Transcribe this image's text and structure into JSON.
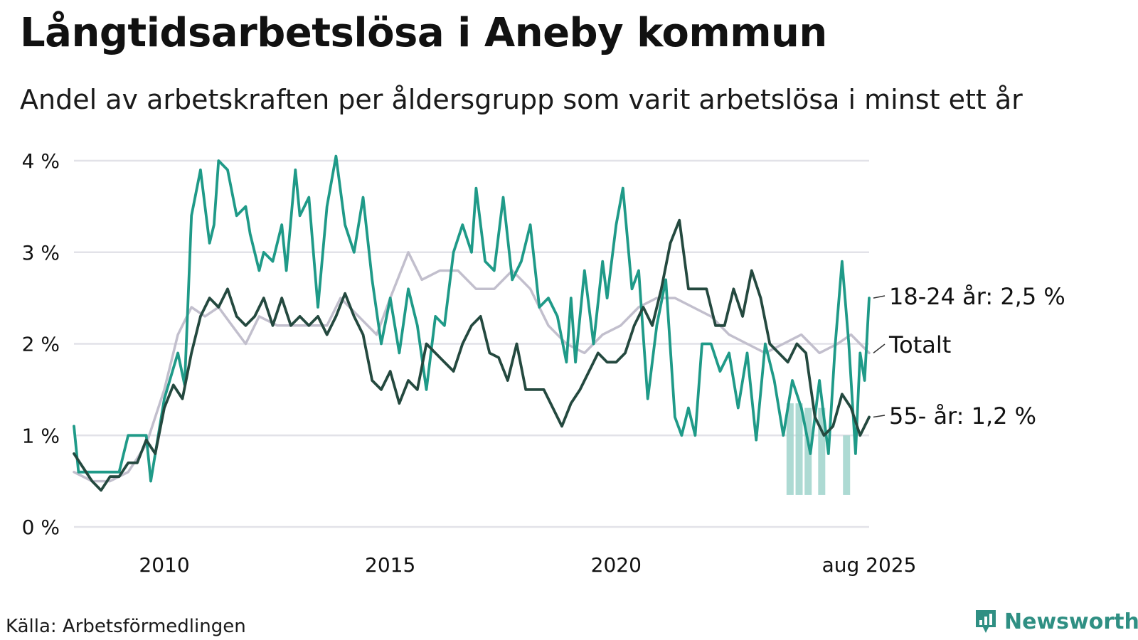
{
  "title": "Långtidsarbetslösa i Aneby kommun",
  "subtitle": "Andel av arbetskraften per åldersgrupp som varit arbetslösa i minst ett år",
  "source": "Källa: Arbetsförmedlingen",
  "brand": "Newsworthy",
  "colors": {
    "young": "#1f9a88",
    "total": "#c2bfcd",
    "old": "#24493f",
    "uncertainty": "#9fd3cb",
    "grid": "#e2e2e8"
  },
  "chart_data": {
    "type": "line",
    "ylim": [
      0,
      4
    ],
    "xlim": [
      2008.0,
      2025.6
    ],
    "yticks": [
      {
        "value": 0,
        "label": "0 %"
      },
      {
        "value": 1,
        "label": "1 %"
      },
      {
        "value": 2,
        "label": "2 %"
      },
      {
        "value": 3,
        "label": "3 %"
      },
      {
        "value": 4,
        "label": "4 %"
      }
    ],
    "xticks": [
      {
        "value": 2010,
        "label": "2010"
      },
      {
        "value": 2015,
        "label": "2015"
      },
      {
        "value": 2020,
        "label": "2020"
      },
      {
        "value": 2025.6,
        "label": "aug 2025"
      }
    ],
    "series": [
      {
        "key": "total",
        "name": "Totalt",
        "label": "Totalt",
        "color": "#c2bfcd",
        "points": [
          [
            2008.0,
            0.6
          ],
          [
            2008.4,
            0.5
          ],
          [
            2008.8,
            0.5
          ],
          [
            2009.2,
            0.6
          ],
          [
            2009.6,
            0.9
          ],
          [
            2010.0,
            1.5
          ],
          [
            2010.3,
            2.1
          ],
          [
            2010.6,
            2.4
          ],
          [
            2010.9,
            2.3
          ],
          [
            2011.2,
            2.4
          ],
          [
            2011.5,
            2.2
          ],
          [
            2011.8,
            2.0
          ],
          [
            2012.1,
            2.3
          ],
          [
            2012.5,
            2.2
          ],
          [
            2012.9,
            2.2
          ],
          [
            2013.3,
            2.2
          ],
          [
            2013.6,
            2.2
          ],
          [
            2013.9,
            2.5
          ],
          [
            2014.3,
            2.3
          ],
          [
            2014.7,
            2.1
          ],
          [
            2015.0,
            2.5
          ],
          [
            2015.4,
            3.0
          ],
          [
            2015.7,
            2.7
          ],
          [
            2016.1,
            2.8
          ],
          [
            2016.5,
            2.8
          ],
          [
            2016.9,
            2.6
          ],
          [
            2017.3,
            2.6
          ],
          [
            2017.7,
            2.8
          ],
          [
            2018.1,
            2.6
          ],
          [
            2018.5,
            2.2
          ],
          [
            2018.9,
            2.0
          ],
          [
            2019.3,
            1.9
          ],
          [
            2019.7,
            2.1
          ],
          [
            2020.1,
            2.2
          ],
          [
            2020.5,
            2.4
          ],
          [
            2020.9,
            2.5
          ],
          [
            2021.3,
            2.5
          ],
          [
            2021.7,
            2.4
          ],
          [
            2022.1,
            2.3
          ],
          [
            2022.5,
            2.1
          ],
          [
            2022.9,
            2.0
          ],
          [
            2023.3,
            1.9
          ],
          [
            2023.7,
            2.0
          ],
          [
            2024.1,
            2.1
          ],
          [
            2024.5,
            1.9
          ],
          [
            2024.9,
            2.0
          ],
          [
            2025.2,
            2.1
          ],
          [
            2025.6,
            1.9
          ]
        ]
      },
      {
        "key": "young",
        "name": "18-24 år",
        "label": "18-24 år: 2,5 %",
        "color": "#1f9a88",
        "points": [
          [
            2008.0,
            1.1
          ],
          [
            2008.1,
            0.6
          ],
          [
            2008.5,
            0.6
          ],
          [
            2009.0,
            0.6
          ],
          [
            2009.2,
            1.0
          ],
          [
            2009.4,
            1.0
          ],
          [
            2009.6,
            1.0
          ],
          [
            2009.7,
            0.5
          ],
          [
            2010.0,
            1.4
          ],
          [
            2010.3,
            1.9
          ],
          [
            2010.45,
            1.55
          ],
          [
            2010.6,
            3.4
          ],
          [
            2010.8,
            3.9
          ],
          [
            2011.0,
            3.1
          ],
          [
            2011.1,
            3.3
          ],
          [
            2011.2,
            4.0
          ],
          [
            2011.4,
            3.9
          ],
          [
            2011.6,
            3.4
          ],
          [
            2011.8,
            3.5
          ],
          [
            2011.9,
            3.2
          ],
          [
            2012.1,
            2.8
          ],
          [
            2012.2,
            3.0
          ],
          [
            2012.4,
            2.9
          ],
          [
            2012.6,
            3.3
          ],
          [
            2012.7,
            2.8
          ],
          [
            2012.9,
            3.9
          ],
          [
            2013.0,
            3.4
          ],
          [
            2013.2,
            3.6
          ],
          [
            2013.4,
            2.4
          ],
          [
            2013.6,
            3.5
          ],
          [
            2013.8,
            4.05
          ],
          [
            2014.0,
            3.3
          ],
          [
            2014.2,
            3.0
          ],
          [
            2014.4,
            3.6
          ],
          [
            2014.6,
            2.7
          ],
          [
            2014.8,
            2.0
          ],
          [
            2015.0,
            2.5
          ],
          [
            2015.2,
            1.9
          ],
          [
            2015.4,
            2.6
          ],
          [
            2015.6,
            2.2
          ],
          [
            2015.8,
            1.5
          ],
          [
            2016.0,
            2.3
          ],
          [
            2016.2,
            2.2
          ],
          [
            2016.4,
            3.0
          ],
          [
            2016.6,
            3.3
          ],
          [
            2016.8,
            3.0
          ],
          [
            2016.9,
            3.7
          ],
          [
            2017.1,
            2.9
          ],
          [
            2017.3,
            2.8
          ],
          [
            2017.5,
            3.6
          ],
          [
            2017.7,
            2.7
          ],
          [
            2017.9,
            2.9
          ],
          [
            2018.1,
            3.3
          ],
          [
            2018.3,
            2.4
          ],
          [
            2018.5,
            2.5
          ],
          [
            2018.7,
            2.3
          ],
          [
            2018.9,
            1.8
          ],
          [
            2019.0,
            2.5
          ],
          [
            2019.1,
            1.8
          ],
          [
            2019.3,
            2.8
          ],
          [
            2019.5,
            2.0
          ],
          [
            2019.7,
            2.9
          ],
          [
            2019.8,
            2.5
          ],
          [
            2020.0,
            3.3
          ],
          [
            2020.15,
            3.7
          ],
          [
            2020.35,
            2.6
          ],
          [
            2020.5,
            2.8
          ],
          [
            2020.7,
            1.4
          ],
          [
            2020.9,
            2.2
          ],
          [
            2021.1,
            2.7
          ],
          [
            2021.3,
            1.2
          ],
          [
            2021.45,
            1.0
          ],
          [
            2021.6,
            1.3
          ],
          [
            2021.75,
            1.0
          ],
          [
            2021.9,
            2.0
          ],
          [
            2022.1,
            2.0
          ],
          [
            2022.3,
            1.7
          ],
          [
            2022.5,
            1.9
          ],
          [
            2022.7,
            1.3
          ],
          [
            2022.9,
            1.9
          ],
          [
            2023.1,
            0.95
          ],
          [
            2023.3,
            2.0
          ],
          [
            2023.5,
            1.6
          ],
          [
            2023.7,
            1.0
          ],
          [
            2023.9,
            1.6
          ],
          [
            2024.1,
            1.3
          ],
          [
            2024.3,
            0.8
          ],
          [
            2024.5,
            1.6
          ],
          [
            2024.7,
            0.8
          ],
          [
            2024.85,
            2.0
          ],
          [
            2025.0,
            2.9
          ],
          [
            2025.15,
            2.0
          ],
          [
            2025.3,
            0.8
          ],
          [
            2025.4,
            1.9
          ],
          [
            2025.5,
            1.6
          ],
          [
            2025.6,
            2.5
          ]
        ]
      },
      {
        "key": "old",
        "name": "55- år",
        "label": "55- år: 1,2 %",
        "color": "#24493f",
        "points": [
          [
            2008.0,
            0.8
          ],
          [
            2008.2,
            0.65
          ],
          [
            2008.4,
            0.5
          ],
          [
            2008.6,
            0.4
          ],
          [
            2008.8,
            0.55
          ],
          [
            2009.0,
            0.55
          ],
          [
            2009.2,
            0.7
          ],
          [
            2009.4,
            0.7
          ],
          [
            2009.6,
            0.95
          ],
          [
            2009.8,
            0.8
          ],
          [
            2010.0,
            1.3
          ],
          [
            2010.2,
            1.55
          ],
          [
            2010.4,
            1.4
          ],
          [
            2010.6,
            1.9
          ],
          [
            2010.8,
            2.3
          ],
          [
            2011.0,
            2.5
          ],
          [
            2011.2,
            2.4
          ],
          [
            2011.4,
            2.6
          ],
          [
            2011.6,
            2.3
          ],
          [
            2011.8,
            2.2
          ],
          [
            2012.0,
            2.3
          ],
          [
            2012.2,
            2.5
          ],
          [
            2012.4,
            2.2
          ],
          [
            2012.6,
            2.5
          ],
          [
            2012.8,
            2.2
          ],
          [
            2013.0,
            2.3
          ],
          [
            2013.2,
            2.2
          ],
          [
            2013.4,
            2.3
          ],
          [
            2013.6,
            2.1
          ],
          [
            2013.8,
            2.3
          ],
          [
            2014.0,
            2.55
          ],
          [
            2014.2,
            2.3
          ],
          [
            2014.4,
            2.1
          ],
          [
            2014.6,
            1.6
          ],
          [
            2014.8,
            1.5
          ],
          [
            2015.0,
            1.7
          ],
          [
            2015.2,
            1.35
          ],
          [
            2015.4,
            1.6
          ],
          [
            2015.6,
            1.5
          ],
          [
            2015.8,
            2.0
          ],
          [
            2016.0,
            1.9
          ],
          [
            2016.2,
            1.8
          ],
          [
            2016.4,
            1.7
          ],
          [
            2016.6,
            2.0
          ],
          [
            2016.8,
            2.2
          ],
          [
            2017.0,
            2.3
          ],
          [
            2017.2,
            1.9
          ],
          [
            2017.4,
            1.85
          ],
          [
            2017.6,
            1.6
          ],
          [
            2017.8,
            2.0
          ],
          [
            2018.0,
            1.5
          ],
          [
            2018.2,
            1.5
          ],
          [
            2018.4,
            1.5
          ],
          [
            2018.6,
            1.3
          ],
          [
            2018.8,
            1.1
          ],
          [
            2019.0,
            1.35
          ],
          [
            2019.2,
            1.5
          ],
          [
            2019.4,
            1.7
          ],
          [
            2019.6,
            1.9
          ],
          [
            2019.8,
            1.8
          ],
          [
            2020.0,
            1.8
          ],
          [
            2020.2,
            1.9
          ],
          [
            2020.4,
            2.2
          ],
          [
            2020.6,
            2.4
          ],
          [
            2020.8,
            2.2
          ],
          [
            2021.0,
            2.6
          ],
          [
            2021.2,
            3.1
          ],
          [
            2021.4,
            3.35
          ],
          [
            2021.6,
            2.6
          ],
          [
            2021.8,
            2.6
          ],
          [
            2022.0,
            2.6
          ],
          [
            2022.2,
            2.2
          ],
          [
            2022.4,
            2.2
          ],
          [
            2022.6,
            2.6
          ],
          [
            2022.8,
            2.3
          ],
          [
            2023.0,
            2.8
          ],
          [
            2023.2,
            2.5
          ],
          [
            2023.4,
            2.0
          ],
          [
            2023.6,
            1.9
          ],
          [
            2023.8,
            1.8
          ],
          [
            2024.0,
            2.0
          ],
          [
            2024.2,
            1.9
          ],
          [
            2024.4,
            1.2
          ],
          [
            2024.6,
            1.0
          ],
          [
            2024.8,
            1.1
          ],
          [
            2025.0,
            1.45
          ],
          [
            2025.2,
            1.3
          ],
          [
            2025.4,
            1.0
          ],
          [
            2025.6,
            1.2
          ]
        ]
      }
    ],
    "uncertainty": [
      {
        "x": 2023.85,
        "low": 0.35,
        "high": 1.35
      },
      {
        "x": 2024.05,
        "low": 0.35,
        "high": 1.35
      },
      {
        "x": 2024.25,
        "low": 0.35,
        "high": 1.3
      },
      {
        "x": 2024.55,
        "low": 0.35,
        "high": 1.3
      },
      {
        "x": 2025.1,
        "low": 0.35,
        "high": 1.0
      }
    ]
  }
}
